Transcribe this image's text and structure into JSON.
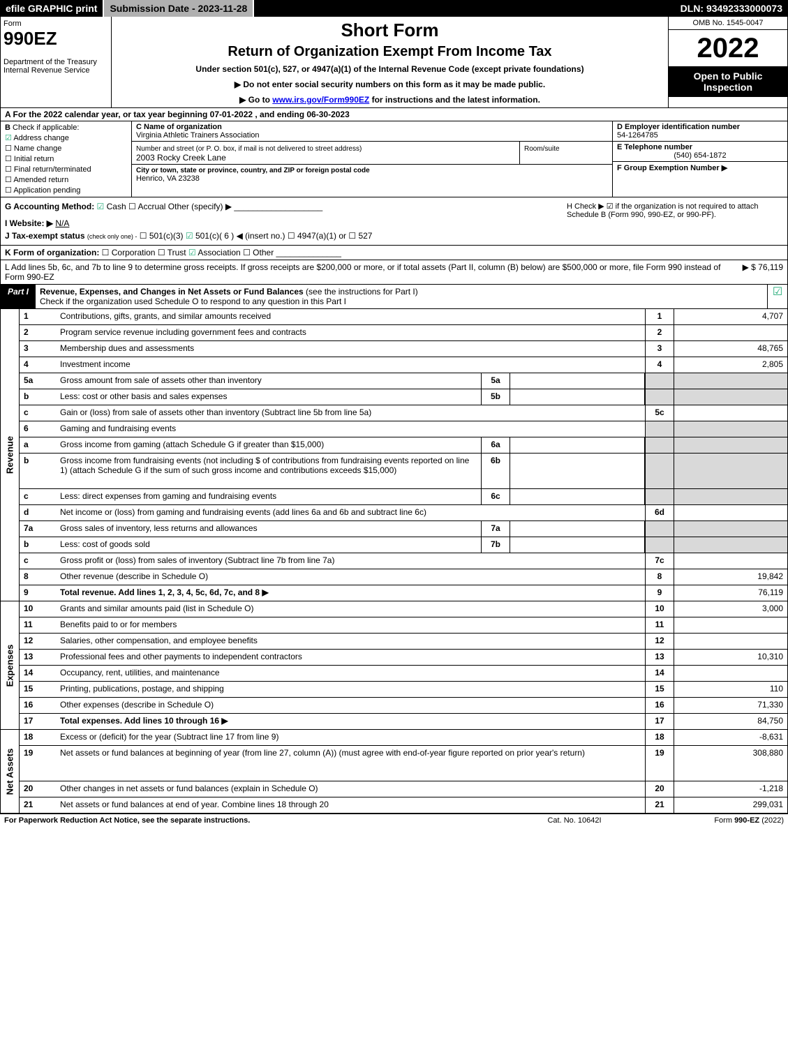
{
  "topbar": {
    "efile": "efile GRAPHIC print",
    "submission": "Submission Date - 2023-11-28",
    "dln": "DLN: 93492333000073"
  },
  "header": {
    "form_word": "Form",
    "form_number": "990EZ",
    "dept": "Department of the Treasury\nInternal Revenue Service",
    "title1": "Short Form",
    "title2": "Return of Organization Exempt From Income Tax",
    "subtitle": "Under section 501(c), 527, or 4947(a)(1) of the Internal Revenue Code (except private foundations)",
    "note1": "▶ Do not enter social security numbers on this form as it may be made public.",
    "note2_pre": "▶ Go to ",
    "note2_link": "www.irs.gov/Form990EZ",
    "note2_post": " for instructions and the latest information.",
    "omb": "OMB No. 1545-0047",
    "year": "2022",
    "inspect": "Open to Public Inspection"
  },
  "lineA": "A  For the 2022 calendar year, or tax year beginning 07-01-2022 , and ending 06-30-2023",
  "colB": {
    "label": "B",
    "check_if": "Check if applicable:",
    "opts": [
      {
        "t": "Address change",
        "c": true
      },
      {
        "t": "Name change",
        "c": false
      },
      {
        "t": "Initial return",
        "c": false
      },
      {
        "t": "Final return/terminated",
        "c": false
      },
      {
        "t": "Amended return",
        "c": false
      },
      {
        "t": "Application pending",
        "c": false
      }
    ]
  },
  "colC": {
    "name_h": "C Name of organization",
    "name": "Virginia Athletic Trainers Association",
    "street_h": "Number and street (or P. O. box, if mail is not delivered to street address)",
    "room_h": "Room/suite",
    "street": "2003 Rocky Creek Lane",
    "city_h": "City or town, state or province, country, and ZIP or foreign postal code",
    "city": "Henrico, VA  23238"
  },
  "colD": {
    "ein_h": "D Employer identification number",
    "ein": "54-1264785",
    "tel_h": "E Telephone number",
    "tel": "(540) 654-1872",
    "grp_h": "F Group Exemption Number  ▶"
  },
  "lineG": {
    "label": "G Accounting Method:",
    "cash": "Cash",
    "accrual": "Accrual",
    "other": "Other (specify) ▶"
  },
  "lineH": {
    "text": "H  Check ▶ ☑ if the organization is not required to attach Schedule B (Form 990, 990-EZ, or 990-PF)."
  },
  "lineI": {
    "label": "I Website: ▶",
    "val": "N/A"
  },
  "lineJ": {
    "label": "J Tax-exempt status",
    "note": "(check only one) -",
    "o1": "501(c)(3)",
    "o2": "501(c)( 6 ) ◀ (insert no.)",
    "o3": "4947(a)(1) or",
    "o4": "527"
  },
  "lineK": {
    "label": "K Form of organization:",
    "o1": "Corporation",
    "o2": "Trust",
    "o3": "Association",
    "o4": "Other"
  },
  "lineL": {
    "text": "L Add lines 5b, 6c, and 7b to line 9 to determine gross receipts. If gross receipts are $200,000 or more, or if total assets (Part II, column (B) below) are $500,000 or more, file Form 990 instead of Form 990-EZ",
    "amount": "▶ $ 76,119"
  },
  "partI": {
    "tab": "Part I",
    "title": "Revenue, Expenses, and Changes in Net Assets or Fund Balances",
    "paren": "(see the instructions for Part I)",
    "sub": "Check if the organization used Schedule O to respond to any question in this Part I"
  },
  "revenue_label": "Revenue",
  "expenses_label": "Expenses",
  "netassets_label": "Net Assets",
  "revenue_rows": [
    {
      "n": "1",
      "d": "Contributions, gifts, grants, and similar amounts received",
      "rn": "1",
      "rv": "4,707"
    },
    {
      "n": "2",
      "d": "Program service revenue including government fees and contracts",
      "rn": "2",
      "rv": ""
    },
    {
      "n": "3",
      "d": "Membership dues and assessments",
      "rn": "3",
      "rv": "48,765"
    },
    {
      "n": "4",
      "d": "Investment income",
      "rn": "4",
      "rv": "2,805"
    },
    {
      "n": "5a",
      "d": "Gross amount from sale of assets other than inventory",
      "sub": "5a",
      "subv": "",
      "shade": true
    },
    {
      "n": "b",
      "d": "Less: cost or other basis and sales expenses",
      "sub": "5b",
      "subv": "",
      "shade": true
    },
    {
      "n": "c",
      "d": "Gain or (loss) from sale of assets other than inventory (Subtract line 5b from line 5a)",
      "rn": "5c",
      "rv": ""
    },
    {
      "n": "6",
      "d": "Gaming and fundraising events",
      "shade_only": true
    },
    {
      "n": "a",
      "d": "Gross income from gaming (attach Schedule G if greater than $15,000)",
      "sub": "6a",
      "subv": "",
      "shade": true
    },
    {
      "n": "b",
      "d": "Gross income from fundraising events (not including $               of contributions from fundraising events reported on line 1) (attach Schedule G if the sum of such gross income and contributions exceeds $15,000)",
      "sub": "6b",
      "subv": "",
      "shade": true,
      "tall": true
    },
    {
      "n": "c",
      "d": "Less: direct expenses from gaming and fundraising events",
      "sub": "6c",
      "subv": "",
      "shade": true
    },
    {
      "n": "d",
      "d": "Net income or (loss) from gaming and fundraising events (add lines 6a and 6b and subtract line 6c)",
      "rn": "6d",
      "rv": ""
    },
    {
      "n": "7a",
      "d": "Gross sales of inventory, less returns and allowances",
      "sub": "7a",
      "subv": "",
      "shade": true
    },
    {
      "n": "b",
      "d": "Less: cost of goods sold",
      "sub": "7b",
      "subv": "",
      "shade": true
    },
    {
      "n": "c",
      "d": "Gross profit or (loss) from sales of inventory (Subtract line 7b from line 7a)",
      "rn": "7c",
      "rv": ""
    },
    {
      "n": "8",
      "d": "Other revenue (describe in Schedule O)",
      "rn": "8",
      "rv": "19,842"
    },
    {
      "n": "9",
      "d": "Total revenue. Add lines 1, 2, 3, 4, 5c, 6d, 7c, and 8",
      "rn": "9",
      "rv": "76,119",
      "bold": true,
      "arrow": true
    }
  ],
  "expense_rows": [
    {
      "n": "10",
      "d": "Grants and similar amounts paid (list in Schedule O)",
      "rn": "10",
      "rv": "3,000"
    },
    {
      "n": "11",
      "d": "Benefits paid to or for members",
      "rn": "11",
      "rv": ""
    },
    {
      "n": "12",
      "d": "Salaries, other compensation, and employee benefits",
      "rn": "12",
      "rv": ""
    },
    {
      "n": "13",
      "d": "Professional fees and other payments to independent contractors",
      "rn": "13",
      "rv": "10,310"
    },
    {
      "n": "14",
      "d": "Occupancy, rent, utilities, and maintenance",
      "rn": "14",
      "rv": ""
    },
    {
      "n": "15",
      "d": "Printing, publications, postage, and shipping",
      "rn": "15",
      "rv": "110"
    },
    {
      "n": "16",
      "d": "Other expenses (describe in Schedule O)",
      "rn": "16",
      "rv": "71,330"
    },
    {
      "n": "17",
      "d": "Total expenses. Add lines 10 through 16",
      "rn": "17",
      "rv": "84,750",
      "bold": true,
      "arrow": true
    }
  ],
  "netasset_rows": [
    {
      "n": "18",
      "d": "Excess or (deficit) for the year (Subtract line 17 from line 9)",
      "rn": "18",
      "rv": "-8,631"
    },
    {
      "n": "19",
      "d": "Net assets or fund balances at beginning of year (from line 27, column (A)) (must agree with end-of-year figure reported on prior year's return)",
      "rn": "19",
      "rv": "308,880",
      "tall": true
    },
    {
      "n": "20",
      "d": "Other changes in net assets or fund balances (explain in Schedule O)",
      "rn": "20",
      "rv": "-1,218"
    },
    {
      "n": "21",
      "d": "Net assets or fund balances at end of year. Combine lines 18 through 20",
      "rn": "21",
      "rv": "299,031"
    }
  ],
  "footer": {
    "l": "For Paperwork Reduction Act Notice, see the separate instructions.",
    "c": "Cat. No. 10642I",
    "r_pre": "Form ",
    "r_b": "990-EZ",
    "r_post": " (2022)"
  }
}
